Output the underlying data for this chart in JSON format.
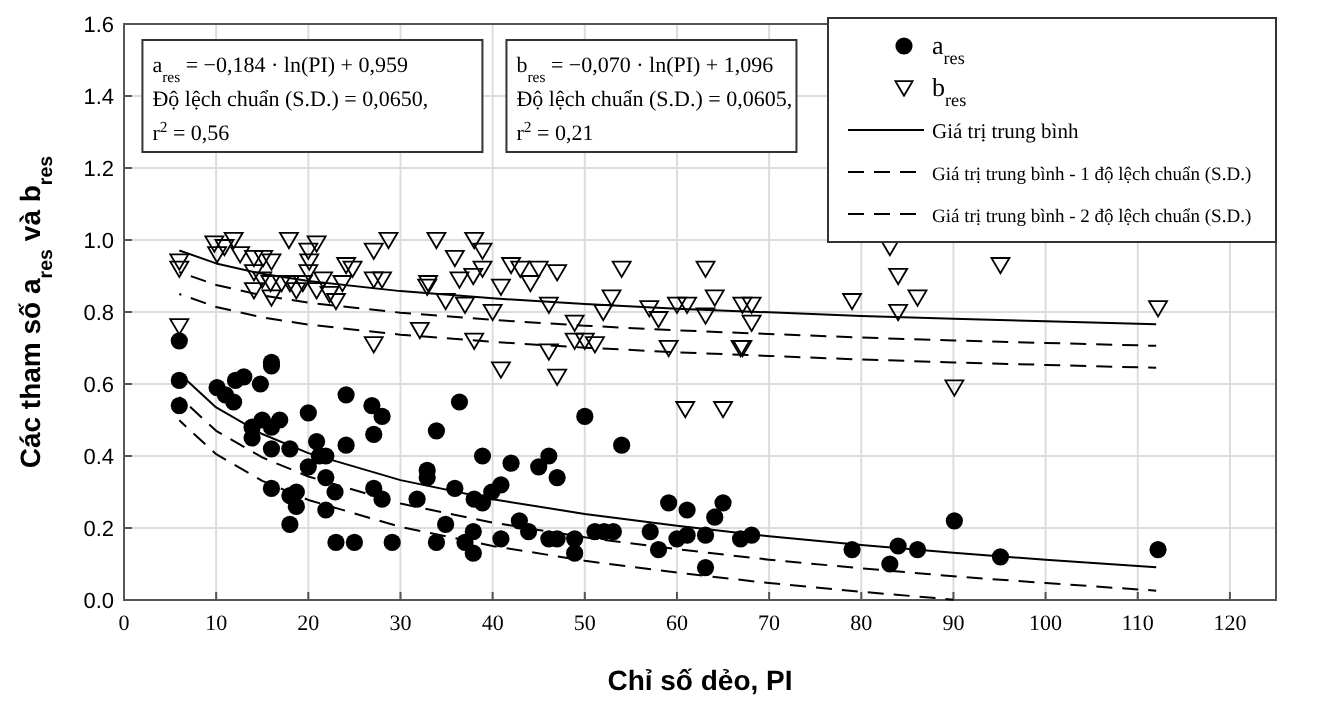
{
  "chart_data": {
    "type": "scatter",
    "xlabel": "Chỉ số dẻo, PI",
    "ylabel": "Các tham số a$_{res}$ và b$_{res}$",
    "xlim": [
      0,
      125
    ],
    "xticks": [
      0,
      10,
      20,
      30,
      40,
      50,
      60,
      70,
      80,
      90,
      100,
      110,
      120
    ],
    "ylim": [
      0,
      1.6
    ],
    "yticks": [
      {
        "value": 0,
        "label": "0.0"
      },
      0.2,
      0.4,
      0.6,
      0.8,
      {
        "value": 1,
        "label": "1.0"
      },
      1.2,
      1.4,
      1.6
    ],
    "grid": true,
    "legend": "top right",
    "annotations": [
      "a$_{res}$ = −0,184 · ln(PI) + 0,959",
      "Độ lệch chuẩn (S.D.) = 0,0650,",
      "r$^{2}$ = 0,56",
      "b$_{res}$ = −0,070 · ln(PI) + 1,096",
      "Độ lệch chuẩn (S.D.) = 0,0605,",
      "r$^{2}$ = 0,21"
    ],
    "series": [
      {
        "name": "a$_{res}$",
        "marker": "circle",
        "color": "#000000",
        "x": [
          6,
          6,
          6,
          10.1,
          11,
          11.9,
          12.1,
          13,
          14.8,
          13.9,
          13.9,
          15,
          16,
          16,
          16,
          16,
          16.9,
          18,
          16,
          18,
          18,
          18.7,
          18.7,
          20,
          20,
          20.9,
          21.2,
          21.9,
          21.9,
          21.9,
          22.9,
          23,
          24.1,
          24.1,
          25,
          26.9,
          27.1,
          28,
          27.1,
          28,
          29.1,
          31.8,
          32.9,
          32.9,
          33.9,
          36.4,
          38.9,
          35.9,
          34.9,
          33.9,
          37,
          37.9,
          37.9,
          38,
          38.9,
          39.9,
          40.9,
          42,
          40.9,
          42.9,
          43.9,
          45,
          46.1,
          47,
          46.1,
          47,
          48.9,
          48.9,
          50,
          51.1,
          52.1,
          53.1,
          54,
          57.1,
          58,
          59.1,
          60,
          61.1,
          61.1,
          63.1,
          63.1,
          64.1,
          65,
          66.9,
          68.1,
          79,
          84,
          83.1,
          86.1,
          90.1,
          95.1,
          112.2
        ],
        "values": [
          0.72,
          0.61,
          0.54,
          0.59,
          0.57,
          0.55,
          0.61,
          0.62,
          0.6,
          0.48,
          0.45,
          0.5,
          0.66,
          0.65,
          0.48,
          0.42,
          0.5,
          0.42,
          0.31,
          0.29,
          0.21,
          0.3,
          0.26,
          0.52,
          0.37,
          0.44,
          0.4,
          0.4,
          0.34,
          0.25,
          0.3,
          0.16,
          0.57,
          0.43,
          0.16,
          0.54,
          0.46,
          0.51,
          0.31,
          0.28,
          0.16,
          0.28,
          0.36,
          0.34,
          0.47,
          0.55,
          0.4,
          0.31,
          0.21,
          0.16,
          0.16,
          0.19,
          0.13,
          0.28,
          0.27,
          0.3,
          0.32,
          0.38,
          0.17,
          0.22,
          0.19,
          0.37,
          0.4,
          0.34,
          0.17,
          0.17,
          0.17,
          0.13,
          0.51,
          0.19,
          0.19,
          0.19,
          0.43,
          0.19,
          0.14,
          0.27,
          0.17,
          0.18,
          0.25,
          0.18,
          0.09,
          0.23,
          0.27,
          0.17,
          0.18,
          0.14,
          0.15,
          0.1,
          0.14,
          0.22,
          0.12,
          0.14
        ]
      },
      {
        "name": "b$_{res}$",
        "marker": "triangle",
        "color": "#000000",
        "x": [
          6,
          6,
          6,
          9.8,
          10.9,
          11.9,
          10.1,
          12.6,
          14.1,
          15.1,
          16,
          14.1,
          15,
          15.9,
          14.1,
          16,
          17.9,
          17.1,
          18,
          18.7,
          19.4,
          20,
          20.9,
          20.1,
          20,
          20.9,
          21.6,
          22.3,
          23,
          24.1,
          24.8,
          23.7,
          27.1,
          28.7,
          27.1,
          28,
          27.1,
          32.1,
          33,
          33.9,
          35.9,
          38,
          38.9,
          36.4,
          37.9,
          38.9,
          32.9,
          34.9,
          37,
          40,
          40.9,
          42,
          43,
          44.1,
          45,
          47,
          46.1,
          38,
          40.9,
          46.1,
          47,
          48.9,
          48.9,
          50,
          51.1,
          52.9,
          52,
          54,
          57,
          58,
          59.1,
          60,
          61.1,
          63.1,
          63.1,
          64.1,
          60.9,
          65,
          67.1,
          67.1,
          68.1,
          68.1,
          66.9,
          79,
          84,
          84,
          86.1,
          90.1,
          95.1,
          112.2,
          83.1
        ],
        "values": [
          0.94,
          0.92,
          0.76,
          0.99,
          0.98,
          1,
          0.96,
          0.96,
          0.95,
          0.95,
          0.94,
          0.91,
          0.89,
          0.88,
          0.86,
          0.84,
          1,
          0.88,
          0.88,
          0.86,
          0.88,
          0.97,
          0.99,
          0.94,
          0.91,
          0.86,
          0.89,
          0.85,
          0.83,
          0.93,
          0.92,
          0.88,
          0.97,
          1,
          0.89,
          0.89,
          0.71,
          0.75,
          0.88,
          1,
          0.95,
          1,
          0.97,
          0.89,
          0.9,
          0.92,
          0.87,
          0.83,
          0.82,
          0.8,
          0.87,
          0.93,
          0.92,
          0.88,
          0.92,
          0.91,
          0.82,
          0.72,
          0.64,
          0.69,
          0.62,
          0.77,
          0.72,
          0.72,
          0.71,
          0.84,
          0.8,
          0.92,
          0.81,
          0.78,
          0.7,
          0.82,
          0.82,
          0.92,
          0.79,
          0.84,
          0.53,
          0.53,
          0.82,
          0.7,
          0.82,
          0.77,
          0.7,
          0.83,
          0.9,
          0.8,
          0.84,
          0.59,
          0.93,
          0.81,
          0.98
        ]
      },
      {
        "name": "Giá trị trung bình",
        "type": "line",
        "marker": "none",
        "line_style": "solid",
        "color": "#000000",
        "x": [
          6,
          10,
          15,
          20,
          30,
          40,
          50,
          60,
          70,
          80,
          90,
          100,
          112
        ],
        "values": [
          0.629,
          0.535,
          0.461,
          0.408,
          0.333,
          0.28,
          0.239,
          0.206,
          0.177,
          0.153,
          0.131,
          0.112,
          0.091
        ]
      },
      {
        "name": "Giá trị trung bình - 1 độ lệch chuẩn (S.D.)",
        "type": "line",
        "marker": "none",
        "line_style": "dashed",
        "color": "#000000",
        "x": [
          6,
          10,
          15,
          20,
          30,
          40,
          50,
          60,
          70,
          80,
          90,
          100,
          112
        ],
        "values": [
          0.564,
          0.47,
          0.396,
          0.343,
          0.268,
          0.215,
          0.174,
          0.141,
          0.112,
          0.088,
          0.066,
          0.047,
          0.026
        ]
      },
      {
        "name": "Giá trị trung bình - 2 độ lệch chuẩn (S.D.)",
        "type": "line",
        "marker": "none",
        "line_style": "dashed",
        "color": "#000000",
        "x": [
          6,
          10,
          15,
          20,
          30,
          40,
          50,
          60,
          70,
          80,
          90
        ],
        "values": [
          0.499,
          0.405,
          0.331,
          0.278,
          0.203,
          0.15,
          0.109,
          0.076,
          0.047,
          0.023,
          0.001
        ]
      },
      {
        "type": "line",
        "marker": "none",
        "line_style": "solid",
        "color": "#000000",
        "x": [
          6,
          10,
          15,
          20,
          30,
          40,
          50,
          60,
          70,
          80,
          90,
          100,
          112
        ],
        "values": [
          0.971,
          0.935,
          0.906,
          0.886,
          0.858,
          0.838,
          0.822,
          0.809,
          0.799,
          0.789,
          0.781,
          0.774,
          0.766
        ]
      },
      {
        "type": "line",
        "marker": "none",
        "line_style": "dashed",
        "color": "#000000",
        "x": [
          6,
          10,
          15,
          20,
          30,
          40,
          50,
          60,
          70,
          80,
          90,
          100,
          112
        ],
        "values": [
          0.911,
          0.875,
          0.846,
          0.826,
          0.798,
          0.778,
          0.762,
          0.749,
          0.739,
          0.729,
          0.721,
          0.714,
          0.706
        ]
      },
      {
        "type": "line",
        "marker": "none",
        "line_style": "dashed",
        "color": "#000000",
        "x": [
          6,
          10,
          15,
          20,
          30,
          40,
          50,
          60,
          70,
          80,
          90,
          100,
          112
        ],
        "values": [
          0.85,
          0.814,
          0.785,
          0.765,
          0.737,
          0.717,
          0.701,
          0.688,
          0.678,
          0.668,
          0.66,
          0.653,
          0.645
        ]
      }
    ]
  }
}
